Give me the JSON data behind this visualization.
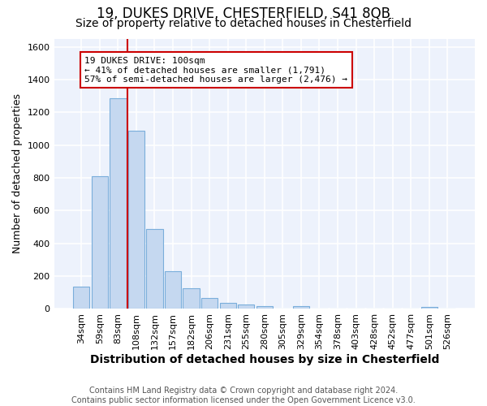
{
  "title": "19, DUKES DRIVE, CHESTERFIELD, S41 8QB",
  "subtitle": "Size of property relative to detached houses in Chesterfield",
  "xlabel": "Distribution of detached houses by size in Chesterfield",
  "ylabel": "Number of detached properties",
  "categories": [
    "34sqm",
    "59sqm",
    "83sqm",
    "108sqm",
    "132sqm",
    "157sqm",
    "182sqm",
    "206sqm",
    "231sqm",
    "255sqm",
    "280sqm",
    "305sqm",
    "329sqm",
    "354sqm",
    "378sqm",
    "403sqm",
    "428sqm",
    "452sqm",
    "477sqm",
    "501sqm",
    "526sqm"
  ],
  "values": [
    135,
    810,
    1285,
    1090,
    490,
    230,
    125,
    65,
    37,
    27,
    15,
    0,
    15,
    0,
    0,
    0,
    0,
    0,
    0,
    13,
    0
  ],
  "bar_color": "#c5d8f0",
  "bar_edge_color": "#7aaedb",
  "vline_color": "#cc0000",
  "annotation_line1": "19 DUKES DRIVE: 100sqm",
  "annotation_line2": "← 41% of detached houses are smaller (1,791)",
  "annotation_line3": "57% of semi-detached houses are larger (2,476) →",
  "annotation_box_color": "#ffffff",
  "annotation_box_edgecolor": "#cc0000",
  "ylim": [
    0,
    1650
  ],
  "yticks": [
    0,
    200,
    400,
    600,
    800,
    1000,
    1200,
    1400,
    1600
  ],
  "bg_color": "#edf2fc",
  "grid_color": "#ffffff",
  "footer": "Contains HM Land Registry data © Crown copyright and database right 2024.\nContains public sector information licensed under the Open Government Licence v3.0.",
  "title_fontsize": 12,
  "subtitle_fontsize": 10,
  "xlabel_fontsize": 10,
  "ylabel_fontsize": 9,
  "tick_fontsize": 8,
  "annotation_fontsize": 8,
  "footer_fontsize": 7
}
